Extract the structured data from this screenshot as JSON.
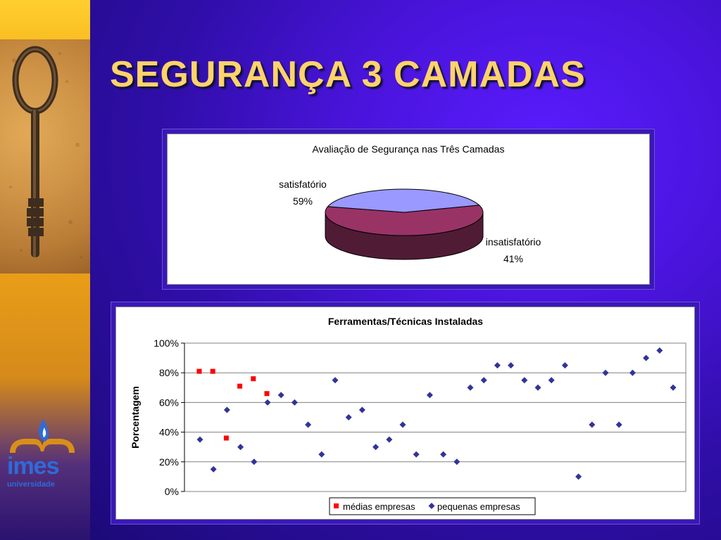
{
  "slide": {
    "title": "SEGURANÇA 3 CAMADAS",
    "logo_text": "imes",
    "logo_subtext": "universidade"
  },
  "colors": {
    "title": "#ffd36a",
    "pie_satisfatorio": "#993366",
    "pie_insatisfatorio": "#9999ff",
    "series_medias": "#ff0000",
    "series_pequenas": "#333399"
  },
  "chart_data": [
    {
      "type": "pie",
      "title": "Avaliação de Segurança nas Três Camadas",
      "three_d": true,
      "slices": [
        {
          "name": "satisfatório",
          "value": 59,
          "label": "59%"
        },
        {
          "name": "insatisfatório",
          "value": 41,
          "label": "41%"
        }
      ]
    },
    {
      "type": "scatter",
      "title": "Ferramentas/Técnicas Instaladas",
      "xlabel": "",
      "ylabel": "Porcentagem",
      "ylim": [
        0,
        100
      ],
      "y_ticks": [
        "0%",
        "20%",
        "40%",
        "60%",
        "80%",
        "100%"
      ],
      "grid": true,
      "legend": "bottom",
      "x_count": 36,
      "series": [
        {
          "name": "médias empresas",
          "marker": "square",
          "x": [
            1,
            2,
            3,
            4,
            5,
            6
          ],
          "y": [
            81,
            81,
            36,
            71,
            76,
            66
          ]
        },
        {
          "name": "pequenas empresas",
          "marker": "diamond",
          "x": [
            1,
            2,
            3,
            4,
            5,
            6,
            7,
            8,
            9,
            10,
            11,
            12,
            13,
            14,
            15,
            16,
            17,
            18,
            19,
            20,
            21,
            22,
            23,
            24,
            25,
            26,
            27,
            28,
            29,
            30,
            31,
            32,
            33,
            34,
            35,
            36
          ],
          "y": [
            35,
            15,
            55,
            30,
            20,
            60,
            65,
            60,
            45,
            25,
            75,
            50,
            55,
            30,
            35,
            45,
            25,
            65,
            25,
            20,
            70,
            75,
            85,
            85,
            75,
            70,
            75,
            85,
            10,
            45,
            80,
            45,
            80,
            90,
            95,
            70
          ]
        }
      ]
    }
  ]
}
